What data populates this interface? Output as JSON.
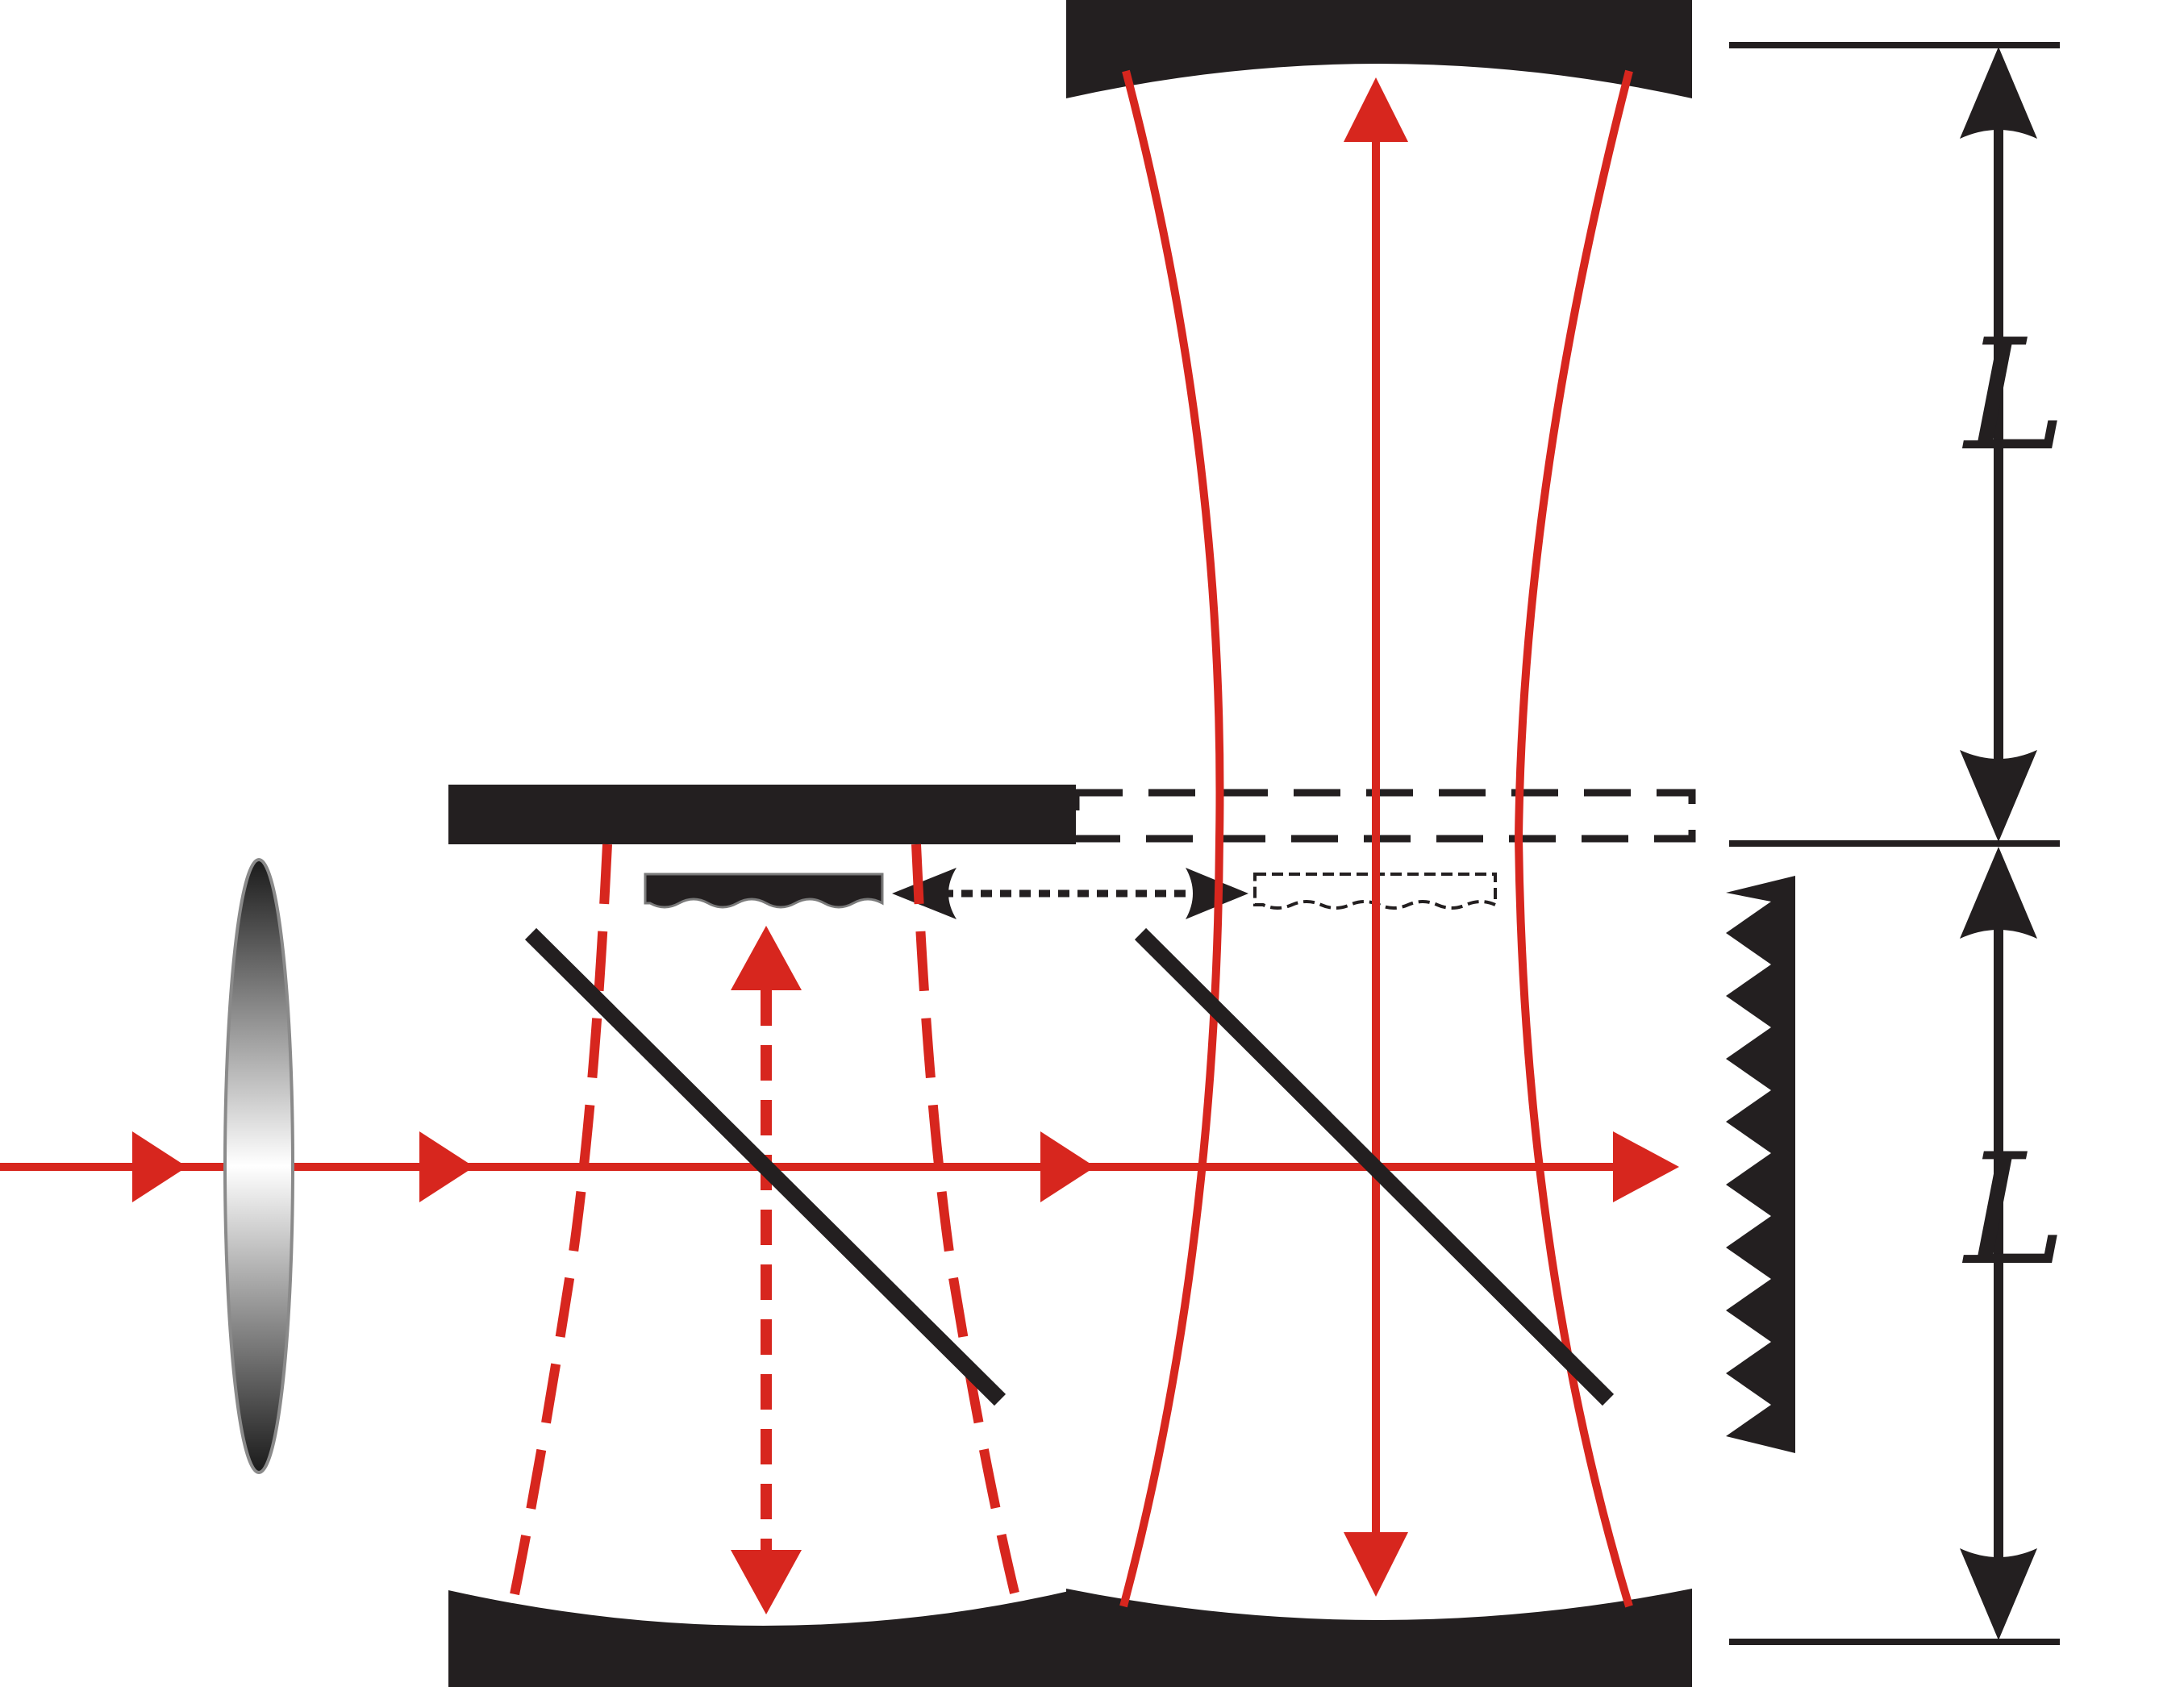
{
  "labels": {
    "upper_length": "L",
    "lower_length": "L"
  },
  "colors": {
    "beam": "#d7261e",
    "optic": "#231f20",
    "background": "#ffffff"
  }
}
